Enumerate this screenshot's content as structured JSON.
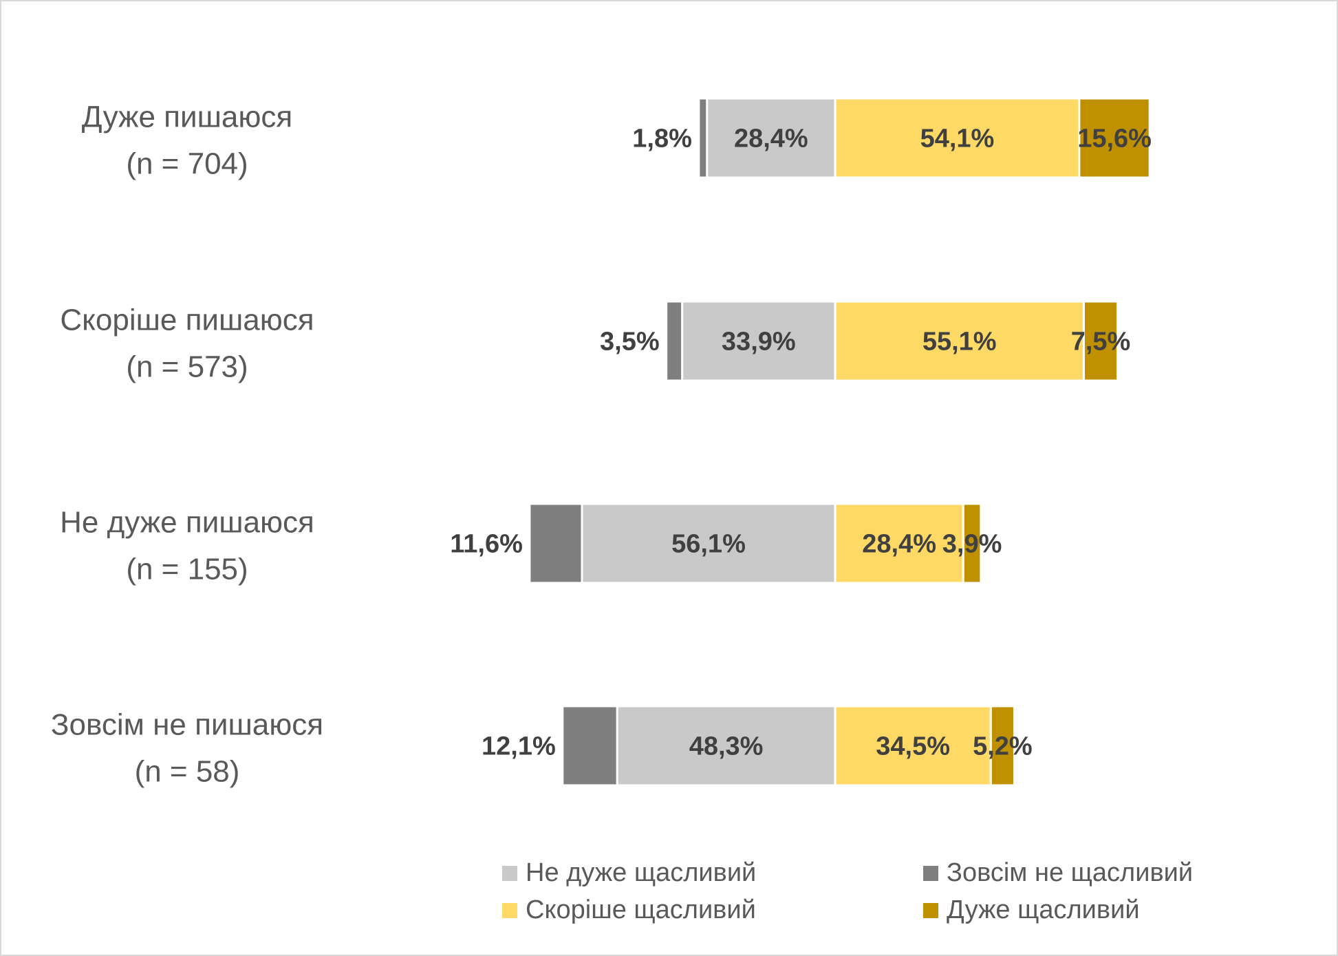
{
  "chart_data": {
    "type": "bar",
    "orientation": "horizontal",
    "stacking": "diverging",
    "categories": [
      {
        "label": "Дуже пишаюся",
        "n": "(n = 704)"
      },
      {
        "label": "Скоріше пишаюся",
        "n": "(n = 573)"
      },
      {
        "label": "Не дуже пишаюся",
        "n": "(n = 155)"
      },
      {
        "label": "Зовсім не пишаюся",
        "n": "(n = 58)"
      }
    ],
    "series": [
      {
        "name": "Не дуже щасливий",
        "side": "negative",
        "color": "#c9c9c9",
        "values": [
          28.4,
          33.9,
          56.1,
          48.3
        ],
        "labels": [
          "28,4%",
          "33,9%",
          "56,1%",
          "48,3%"
        ]
      },
      {
        "name": "Зовсім не щасливий",
        "side": "negative",
        "color": "#7f7f7f",
        "values": [
          1.8,
          3.5,
          11.6,
          12.1
        ],
        "labels": [
          "1,8%",
          "3,5%",
          "11,6%",
          "12,1%"
        ]
      },
      {
        "name": "Скоріше щасливий",
        "side": "positive",
        "color": "#ffd966",
        "values": [
          54.1,
          55.1,
          28.4,
          34.5
        ],
        "labels": [
          "54,1%",
          "55,1%",
          "28,4%",
          "34,5%"
        ]
      },
      {
        "name": "Дуже щасливий",
        "side": "positive",
        "color": "#bf9000",
        "values": [
          15.6,
          7.5,
          3.9,
          5.2
        ],
        "labels": [
          "15,6%",
          "7,5%",
          "3,9%",
          "5,2%"
        ]
      }
    ],
    "legend_position": "bottom-right",
    "grid": false
  }
}
